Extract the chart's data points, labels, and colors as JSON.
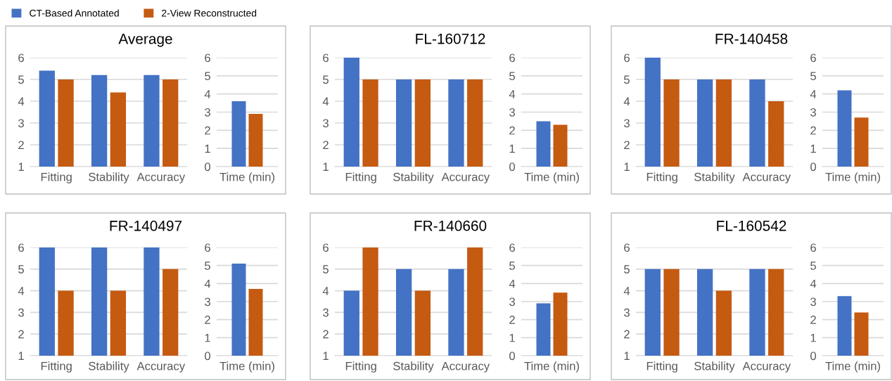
{
  "chart_data": [
    {
      "type": "bar",
      "title": "Average",
      "categories": [
        "Fitting",
        "Stability",
        "Accuracy"
      ],
      "legend": "top",
      "grid": "y",
      "ylim": [
        1,
        6
      ],
      "yticks": [
        1,
        2,
        3,
        4,
        5,
        6
      ],
      "series": [
        {
          "name": "CT-Based Annotated",
          "color": "#4472c4",
          "values": [
            5.4,
            5.2,
            5.2
          ]
        },
        {
          "name": "2-View Reconstructed",
          "color": "#c55a11",
          "values": [
            5.0,
            4.4,
            5.0
          ]
        }
      ]
    },
    {
      "type": "bar",
      "categories": [
        "Time (min)"
      ],
      "grid": "y",
      "ylim": [
        0,
        6
      ],
      "yticks": [
        0,
        1,
        2,
        3,
        4,
        5,
        6
      ],
      "series": [
        {
          "color": "#4472c4",
          "values": [
            3.6
          ]
        },
        {
          "color": "#c55a11",
          "values": [
            2.9
          ]
        }
      ]
    },
    {
      "type": "bar",
      "title": "FL-160712",
      "categories": [
        "Fitting",
        "Stability",
        "Accuracy"
      ],
      "grid": "y",
      "ylim": [
        1,
        6
      ],
      "yticks": [
        1,
        2,
        3,
        4,
        5,
        6
      ],
      "series": [
        {
          "color": "#4472c4",
          "values": [
            6,
            5,
            5
          ]
        },
        {
          "color": "#c55a11",
          "values": [
            5,
            5,
            5
          ]
        }
      ]
    },
    {
      "type": "bar",
      "categories": [
        "Time (min)"
      ],
      "grid": "y",
      "ylim": [
        0,
        6
      ],
      "yticks": [
        0,
        1,
        2,
        3,
        4,
        5,
        6
      ],
      "series": [
        {
          "color": "#4472c4",
          "values": [
            2.5
          ]
        },
        {
          "color": "#c55a11",
          "values": [
            2.3
          ]
        }
      ]
    },
    {
      "type": "bar",
      "title": "FR-140458",
      "categories": [
        "Fitting",
        "Stability",
        "Accuracy"
      ],
      "grid": "y",
      "ylim": [
        1,
        6
      ],
      "yticks": [
        1,
        2,
        3,
        4,
        5,
        6
      ],
      "series": [
        {
          "color": "#4472c4",
          "values": [
            6,
            5,
            5
          ]
        },
        {
          "color": "#c55a11",
          "values": [
            5,
            5,
            4
          ]
        }
      ]
    },
    {
      "type": "bar",
      "categories": [
        "Time (min)"
      ],
      "grid": "y",
      "ylim": [
        0,
        6
      ],
      "yticks": [
        0,
        1,
        2,
        3,
        4,
        5,
        6
      ],
      "series": [
        {
          "color": "#4472c4",
          "values": [
            4.2
          ]
        },
        {
          "color": "#c55a11",
          "values": [
            2.7
          ]
        }
      ]
    },
    {
      "type": "bar",
      "title": "FR-140497",
      "categories": [
        "Fitting",
        "Stability",
        "Accuracy"
      ],
      "grid": "y",
      "ylim": [
        1,
        6
      ],
      "yticks": [
        1,
        2,
        3,
        4,
        5,
        6
      ],
      "series": [
        {
          "color": "#4472c4",
          "values": [
            6,
            6,
            6
          ]
        },
        {
          "color": "#c55a11",
          "values": [
            4,
            4,
            5
          ]
        }
      ]
    },
    {
      "type": "bar",
      "categories": [
        "Time (min)"
      ],
      "grid": "y",
      "ylim": [
        0,
        6
      ],
      "yticks": [
        0,
        1,
        2,
        3,
        4,
        5,
        6
      ],
      "series": [
        {
          "color": "#4472c4",
          "values": [
            5.1
          ]
        },
        {
          "color": "#c55a11",
          "values": [
            3.7
          ]
        }
      ]
    },
    {
      "type": "bar",
      "title": "FR-140660",
      "categories": [
        "Fitting",
        "Stability",
        "Accuracy"
      ],
      "grid": "y",
      "ylim": [
        1,
        6
      ],
      "yticks": [
        1,
        2,
        3,
        4,
        5,
        6
      ],
      "series": [
        {
          "color": "#4472c4",
          "values": [
            4,
            5,
            5
          ]
        },
        {
          "color": "#c55a11",
          "values": [
            6,
            4,
            6
          ]
        }
      ]
    },
    {
      "type": "bar",
      "categories": [
        "Time (min)"
      ],
      "grid": "y",
      "ylim": [
        0,
        6
      ],
      "yticks": [
        0,
        1,
        2,
        3,
        4,
        5,
        6
      ],
      "series": [
        {
          "color": "#4472c4",
          "values": [
            2.9
          ]
        },
        {
          "color": "#c55a11",
          "values": [
            3.5
          ]
        }
      ]
    },
    {
      "type": "bar",
      "title": "FL-160542",
      "categories": [
        "Fitting",
        "Stability",
        "Accuracy"
      ],
      "grid": "y",
      "ylim": [
        1,
        6
      ],
      "yticks": [
        1,
        2,
        3,
        4,
        5,
        6
      ],
      "series": [
        {
          "color": "#4472c4",
          "values": [
            5,
            5,
            5
          ]
        },
        {
          "color": "#c55a11",
          "values": [
            5,
            4,
            5
          ]
        }
      ]
    },
    {
      "type": "bar",
      "categories": [
        "Time (min)"
      ],
      "grid": "y",
      "ylim": [
        0,
        6
      ],
      "yticks": [
        0,
        1,
        2,
        3,
        4,
        5,
        6
      ],
      "series": [
        {
          "color": "#4472c4",
          "values": [
            3.3
          ]
        },
        {
          "color": "#c55a11",
          "values": [
            2.4
          ]
        }
      ]
    }
  ]
}
